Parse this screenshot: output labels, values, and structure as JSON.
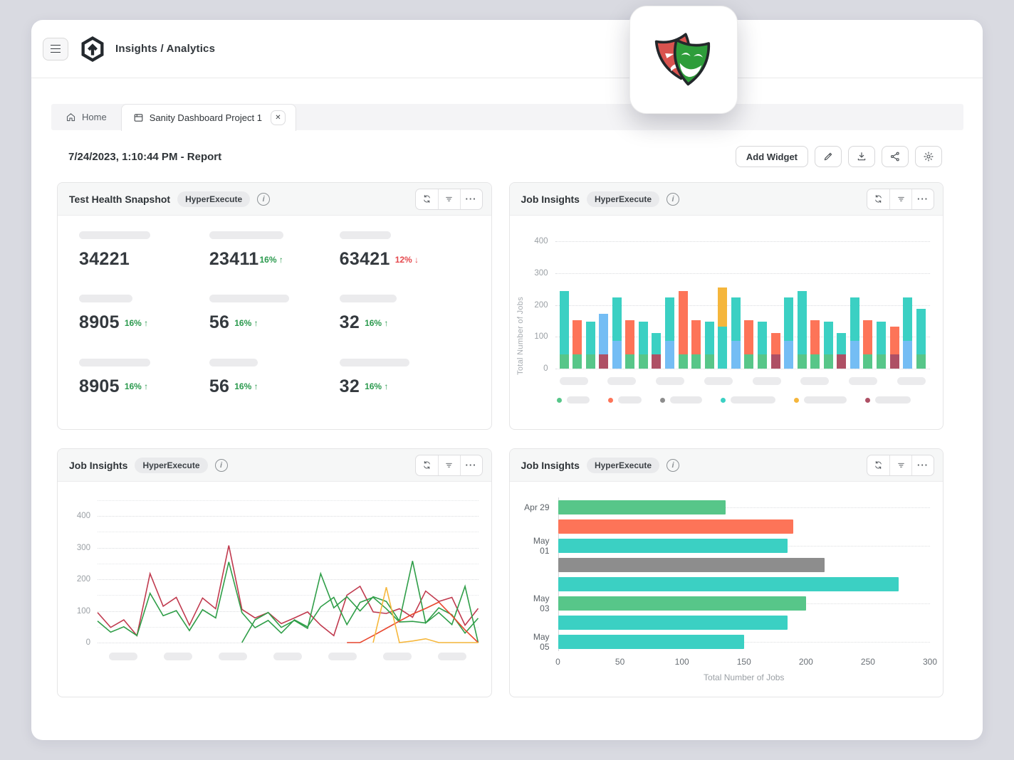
{
  "page": {
    "title": "Insights / Analytics"
  },
  "tabs": {
    "home": "Home",
    "project": "Sanity Dashboard Project 1"
  },
  "report": {
    "title": "7/24/2023, 1:10:44 PM - Report",
    "add_widget": "Add Widget"
  },
  "colors": {
    "teal": "#3bd0c3",
    "green": "#57c689",
    "orange": "#fd7458",
    "blue": "#74bdf4",
    "maroon": "#ae5065",
    "yellow": "#f5b63c",
    "gray": "#8d8d8d",
    "delta_up": "#2b9a4e",
    "delta_down": "#e5484d"
  },
  "legend": {
    "dot_colors": [
      "green",
      "orange",
      "gray",
      "teal",
      "yellow",
      "maroon"
    ],
    "pill_widths": [
      32,
      33,
      45,
      63,
      60,
      50
    ]
  },
  "widgets": {
    "test_health": {
      "title": "Test Health Snapshot",
      "badge": "HyperExecute",
      "stats": [
        [
          {
            "value": "34221",
            "delta": null,
            "dir": null,
            "skel": 100,
            "tight": false
          },
          {
            "value": "23411",
            "delta": "16%",
            "dir": "up",
            "skel": 104,
            "tight": true
          },
          {
            "value": "63421",
            "delta": "12%",
            "dir": "down",
            "skel": 72,
            "tight": false
          }
        ],
        [
          {
            "value": "8905",
            "delta": "16%",
            "dir": "up",
            "skel": 75,
            "tight": false
          },
          {
            "value": "56",
            "delta": "16%",
            "dir": "up",
            "skel": 112,
            "tight": false
          },
          {
            "value": "32",
            "delta": "16%",
            "dir": "up",
            "skel": 80,
            "tight": false
          }
        ],
        [
          {
            "value": "8905",
            "delta": "16%",
            "dir": "up",
            "skel": 100,
            "tight": false
          },
          {
            "value": "56",
            "delta": "16%",
            "dir": "up",
            "skel": 68,
            "tight": false
          },
          {
            "value": "32",
            "delta": "16%",
            "dir": "up",
            "skel": 98,
            "tight": false
          }
        ]
      ]
    },
    "jobs_stacked": {
      "title": "Job Insights",
      "badge": "HyperExecute",
      "chart_data": {
        "type": "bar",
        "stacked": true,
        "ylabel": "Total Number of Jobs",
        "yticks": [
          0,
          100,
          200,
          300,
          400
        ],
        "ymax": 450,
        "x_skeleton_labels": 8,
        "bars": [
          [
            [
              "green",
              45
            ],
            [
              "teal",
              198
            ]
          ],
          [
            [
              "green",
              45
            ],
            [
              "orange",
              107
            ]
          ],
          [
            [
              "green",
              45
            ],
            [
              "teal",
              102
            ]
          ],
          [
            [
              "maroon",
              45
            ],
            [
              "blue",
              128
            ]
          ],
          [
            [
              "blue",
              88
            ],
            [
              "teal",
              135
            ]
          ],
          [
            [
              "green",
              45
            ],
            [
              "orange",
              107
            ]
          ],
          [
            [
              "green",
              45
            ],
            [
              "teal",
              102
            ]
          ],
          [
            [
              "maroon",
              45
            ],
            [
              "teal",
              68
            ]
          ],
          [
            [
              "blue",
              88
            ],
            [
              "teal",
              135
            ]
          ],
          [
            [
              "green",
              45
            ],
            [
              "orange",
              198
            ]
          ],
          [
            [
              "green",
              45
            ],
            [
              "orange",
              107
            ]
          ],
          [
            [
              "green",
              45
            ],
            [
              "teal",
              102
            ]
          ],
          [
            [
              "teal",
              133
            ],
            [
              "yellow",
              122
            ]
          ],
          [
            [
              "blue",
              88
            ],
            [
              "teal",
              135
            ]
          ],
          [
            [
              "green",
              45
            ],
            [
              "orange",
              107
            ]
          ],
          [
            [
              "green",
              45
            ],
            [
              "teal",
              102
            ]
          ],
          [
            [
              "maroon",
              45
            ],
            [
              "orange",
              68
            ]
          ],
          [
            [
              "blue",
              88
            ],
            [
              "teal",
              135
            ]
          ],
          [
            [
              "green",
              45
            ],
            [
              "teal",
              198
            ]
          ],
          [
            [
              "green",
              45
            ],
            [
              "orange",
              107
            ]
          ],
          [
            [
              "green",
              45
            ],
            [
              "teal",
              102
            ]
          ],
          [
            [
              "maroon",
              45
            ],
            [
              "teal",
              68
            ]
          ],
          [
            [
              "blue",
              88
            ],
            [
              "teal",
              135
            ]
          ],
          [
            [
              "green",
              45
            ],
            [
              "orange",
              107
            ]
          ],
          [
            [
              "green",
              45
            ],
            [
              "teal",
              102
            ]
          ],
          [
            [
              "maroon",
              45
            ],
            [
              "orange",
              88
            ]
          ],
          [
            [
              "blue",
              88
            ],
            [
              "teal",
              135
            ]
          ],
          [
            [
              "green",
              45
            ],
            [
              "teal",
              142
            ]
          ]
        ]
      }
    },
    "jobs_line": {
      "title": "Job Insights",
      "badge": "HyperExecute",
      "chart_data": {
        "type": "line",
        "yticks": [
          0,
          100,
          200,
          300,
          400
        ],
        "ymax": 450,
        "x_skeleton_labels": 7,
        "series": [
          {
            "name": "series-crimson",
            "color": "#c03a4e",
            "values": [
              95,
              48,
              72,
              22,
              218,
              115,
              143,
              55,
              141,
              107,
              307,
              105,
              78,
              95,
              60,
              78,
              97,
              55,
              22,
              150,
              178,
              97,
              92,
              107,
              80,
              163,
              130,
              143,
              55,
              108
            ]
          },
          {
            "name": "series-green-a",
            "color": "#2f9e48",
            "values": [
              68,
              33,
              50,
              22,
              156,
              85,
              101,
              38,
              104,
              78,
              255,
              95,
              47,
              70,
              30,
              72,
              50,
              113,
              143,
              57,
              127,
              143,
              107,
              65,
              67,
              62,
              110,
              88,
              30,
              77
            ]
          },
          {
            "name": "series-green-b",
            "color": "#2f9e48",
            "values": [
              null,
              null,
              null,
              null,
              null,
              null,
              null,
              null,
              null,
              null,
              null,
              0,
              72,
              95,
              48,
              70,
              45,
              218,
              110,
              145,
              100,
              145,
              130,
              68,
              258,
              62,
              95,
              57,
              178,
              0
            ]
          },
          {
            "name": "series-red",
            "color": "#e8472e",
            "values": [
              null,
              null,
              null,
              null,
              null,
              null,
              null,
              null,
              null,
              null,
              null,
              null,
              null,
              null,
              null,
              null,
              null,
              null,
              null,
              0,
              0,
              22,
              45,
              68,
              90,
              108,
              128,
              85,
              40,
              0
            ]
          },
          {
            "name": "series-yellow",
            "color": "#f6b73c",
            "values": [
              null,
              null,
              null,
              null,
              null,
              null,
              null,
              null,
              null,
              null,
              null,
              null,
              null,
              null,
              null,
              null,
              null,
              null,
              null,
              null,
              null,
              0,
              175,
              0,
              5,
              12,
              0,
              0,
              0,
              0
            ]
          }
        ]
      }
    },
    "jobs_hbar": {
      "title": "Job Insights",
      "badge": "HyperExecute",
      "chart_data": {
        "type": "bar",
        "orientation": "horizontal",
        "xlabel": "Total Number of Jobs",
        "xticks": [
          0,
          50,
          100,
          150,
          200,
          250,
          300
        ],
        "xmax": 300,
        "bars": [
          {
            "label": "Apr 29",
            "color": "green",
            "value": 135
          },
          {
            "label": null,
            "color": "orange",
            "value": 190
          },
          {
            "label": "May 01",
            "color": "teal",
            "value": 185
          },
          {
            "label": null,
            "color": "gray",
            "value": 215
          },
          {
            "label": null,
            "color": "teal",
            "value": 275
          },
          {
            "label": "May 03",
            "color": "green",
            "value": 200
          },
          {
            "label": null,
            "color": "teal",
            "value": 185
          },
          {
            "label": "May 05",
            "color": "teal",
            "value": 150
          }
        ]
      }
    }
  }
}
